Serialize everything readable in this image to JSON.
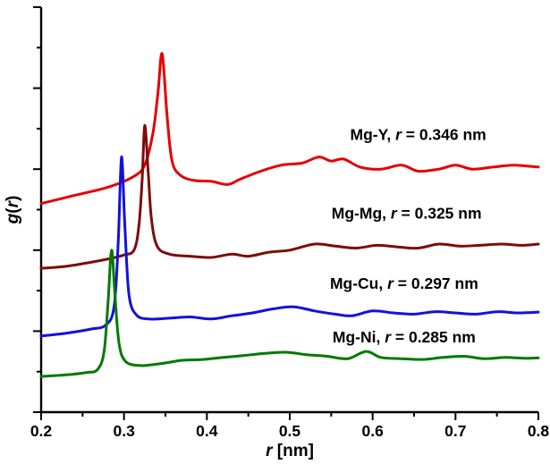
{
  "figure": {
    "background": "#ffffff",
    "axis_color": "#000000",
    "x_axis": {
      "label_parts": [
        {
          "text": "r",
          "italic": true
        },
        {
          "text": " [nm]",
          "italic": false
        }
      ],
      "tick_labels": [
        "0.2",
        "0.3",
        "0.4",
        "0.5",
        "0.6",
        "0.7",
        "0.8"
      ],
      "min": 0.2,
      "max": 0.8,
      "major_step": 0.1,
      "minor_step": 0.05
    },
    "y_axis": {
      "label_parts": [
        {
          "text": "g",
          "italic": true
        },
        {
          "text": "(",
          "italic": false
        },
        {
          "text": "r",
          "italic": true
        },
        {
          "text": ")",
          "italic": false
        }
      ],
      "tick_labels": [],
      "min": 0,
      "max": 10
    }
  },
  "chart_data": {
    "type": "line",
    "title": "",
    "xlabel": "r [nm]",
    "ylabel": "g(r)",
    "xlim": [
      0.2,
      0.8
    ],
    "ylim": [
      0,
      10
    ],
    "grid": false,
    "legend_position": "inline-labels",
    "note": "Partial pair distribution functions, curves vertically offset; y axis in arbitrary units",
    "series": [
      {
        "name": "Mg-Y",
        "color": "#e60000",
        "first_peak_r_nm": 0.346,
        "label_text": "Mg-Y, r = 0.346 nm",
        "label_parts": [
          {
            "text": "Mg-Y, ",
            "italic": false
          },
          {
            "text": "r",
            "italic": true
          },
          {
            "text": " = 0.346 nm",
            "italic": false
          }
        ],
        "label_pos": {
          "x": 0.655,
          "y": 6.72
        },
        "points": [
          [
            0.2,
            5.15
          ],
          [
            0.24,
            5.35
          ],
          [
            0.28,
            5.55
          ],
          [
            0.31,
            5.8
          ],
          [
            0.325,
            6.1
          ],
          [
            0.335,
            6.9
          ],
          [
            0.341,
            7.9
          ],
          [
            0.346,
            8.85
          ],
          [
            0.352,
            7.3
          ],
          [
            0.358,
            6.2
          ],
          [
            0.368,
            5.85
          ],
          [
            0.385,
            5.72
          ],
          [
            0.405,
            5.7
          ],
          [
            0.425,
            5.62
          ],
          [
            0.44,
            5.75
          ],
          [
            0.465,
            5.95
          ],
          [
            0.49,
            6.1
          ],
          [
            0.515,
            6.15
          ],
          [
            0.535,
            6.3
          ],
          [
            0.55,
            6.2
          ],
          [
            0.565,
            6.25
          ],
          [
            0.585,
            6.05
          ],
          [
            0.61,
            6.0
          ],
          [
            0.635,
            6.1
          ],
          [
            0.655,
            5.95
          ],
          [
            0.68,
            6.0
          ],
          [
            0.7,
            6.1
          ],
          [
            0.72,
            6.0
          ],
          [
            0.745,
            6.05
          ],
          [
            0.77,
            6.1
          ],
          [
            0.8,
            6.05
          ]
        ]
      },
      {
        "name": "Mg-Mg",
        "color": "#7d0b0b",
        "first_peak_r_nm": 0.325,
        "label_text": "Mg-Mg, r = 0.325 nm",
        "label_parts": [
          {
            "text": "Mg-Mg, ",
            "italic": false
          },
          {
            "text": "r",
            "italic": true
          },
          {
            "text": " = 0.325 nm",
            "italic": false
          }
        ],
        "label_pos": {
          "x": 0.641,
          "y": 4.78
        },
        "points": [
          [
            0.2,
            3.55
          ],
          [
            0.23,
            3.6
          ],
          [
            0.26,
            3.7
          ],
          [
            0.285,
            3.8
          ],
          [
            0.3,
            3.88
          ],
          [
            0.312,
            4.0
          ],
          [
            0.318,
            4.6
          ],
          [
            0.322,
            5.8
          ],
          [
            0.325,
            7.08
          ],
          [
            0.329,
            6.0
          ],
          [
            0.333,
            4.8
          ],
          [
            0.34,
            4.1
          ],
          [
            0.355,
            3.9
          ],
          [
            0.38,
            3.85
          ],
          [
            0.405,
            3.82
          ],
          [
            0.43,
            3.9
          ],
          [
            0.45,
            3.85
          ],
          [
            0.475,
            3.95
          ],
          [
            0.5,
            4.0
          ],
          [
            0.53,
            4.15
          ],
          [
            0.555,
            4.1
          ],
          [
            0.58,
            4.05
          ],
          [
            0.605,
            4.12
          ],
          [
            0.63,
            4.08
          ],
          [
            0.655,
            4.05
          ],
          [
            0.68,
            4.15
          ],
          [
            0.705,
            4.1
          ],
          [
            0.73,
            4.12
          ],
          [
            0.755,
            4.15
          ],
          [
            0.78,
            4.12
          ],
          [
            0.8,
            4.15
          ]
        ]
      },
      {
        "name": "Mg-Cu",
        "color": "#1111dd",
        "first_peak_r_nm": 0.297,
        "label_text": "Mg-Cu, r = 0.297 nm",
        "label_parts": [
          {
            "text": "Mg-Cu, ",
            "italic": false
          },
          {
            "text": "r",
            "italic": true
          },
          {
            "text": " = 0.297 nm",
            "italic": false
          }
        ],
        "label_pos": {
          "x": 0.638,
          "y": 3.05
        },
        "points": [
          [
            0.2,
            1.88
          ],
          [
            0.23,
            1.95
          ],
          [
            0.26,
            2.05
          ],
          [
            0.278,
            2.15
          ],
          [
            0.288,
            2.6
          ],
          [
            0.293,
            4.2
          ],
          [
            0.297,
            6.3
          ],
          [
            0.301,
            4.6
          ],
          [
            0.306,
            2.9
          ],
          [
            0.315,
            2.4
          ],
          [
            0.33,
            2.3
          ],
          [
            0.355,
            2.32
          ],
          [
            0.38,
            2.35
          ],
          [
            0.405,
            2.3
          ],
          [
            0.43,
            2.38
          ],
          [
            0.455,
            2.45
          ],
          [
            0.48,
            2.55
          ],
          [
            0.505,
            2.6
          ],
          [
            0.53,
            2.5
          ],
          [
            0.555,
            2.42
          ],
          [
            0.575,
            2.38
          ],
          [
            0.6,
            2.5
          ],
          [
            0.625,
            2.45
          ],
          [
            0.65,
            2.42
          ],
          [
            0.675,
            2.48
          ],
          [
            0.7,
            2.45
          ],
          [
            0.725,
            2.42
          ],
          [
            0.75,
            2.48
          ],
          [
            0.775,
            2.45
          ],
          [
            0.8,
            2.47
          ]
        ]
      },
      {
        "name": "Mg-Ni",
        "color": "#007a00",
        "first_peak_r_nm": 0.285,
        "label_text": "Mg-Ni, r = 0.285 nm",
        "label_parts": [
          {
            "text": "Mg-Ni, ",
            "italic": false
          },
          {
            "text": "r",
            "italic": true
          },
          {
            "text": " = 0.285 nm",
            "italic": false
          }
        ],
        "label_pos": {
          "x": 0.638,
          "y": 1.72
        },
        "points": [
          [
            0.2,
            0.88
          ],
          [
            0.23,
            0.92
          ],
          [
            0.255,
            0.98
          ],
          [
            0.268,
            1.05
          ],
          [
            0.276,
            1.5
          ],
          [
            0.281,
            2.8
          ],
          [
            0.285,
            4.0
          ],
          [
            0.289,
            2.9
          ],
          [
            0.294,
            1.7
          ],
          [
            0.302,
            1.25
          ],
          [
            0.32,
            1.15
          ],
          [
            0.345,
            1.2
          ],
          [
            0.37,
            1.28
          ],
          [
            0.395,
            1.3
          ],
          [
            0.42,
            1.35
          ],
          [
            0.445,
            1.4
          ],
          [
            0.47,
            1.45
          ],
          [
            0.495,
            1.48
          ],
          [
            0.52,
            1.42
          ],
          [
            0.545,
            1.38
          ],
          [
            0.57,
            1.32
          ],
          [
            0.592,
            1.5
          ],
          [
            0.61,
            1.35
          ],
          [
            0.635,
            1.32
          ],
          [
            0.66,
            1.3
          ],
          [
            0.685,
            1.35
          ],
          [
            0.71,
            1.38
          ],
          [
            0.735,
            1.32
          ],
          [
            0.76,
            1.35
          ],
          [
            0.785,
            1.33
          ],
          [
            0.8,
            1.34
          ]
        ]
      }
    ]
  }
}
